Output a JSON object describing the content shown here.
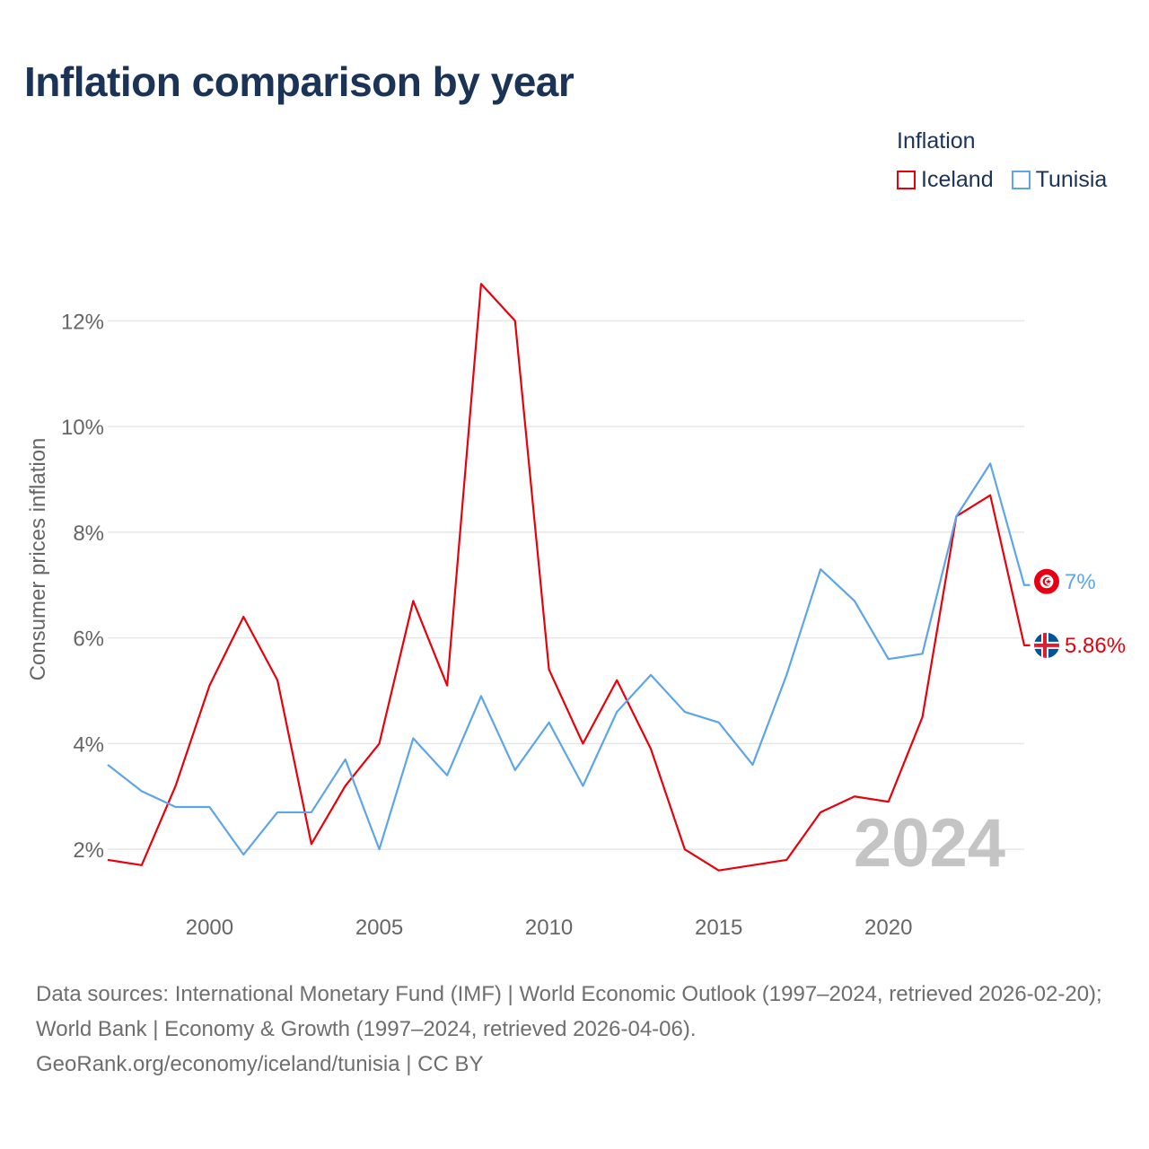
{
  "chart_data": {
    "type": "line",
    "title": "Inflation comparison by year",
    "ylabel": "Consumer prices inflation",
    "xlabel": "",
    "legend_title": "Inflation",
    "legend_position": "top-right",
    "year_watermark": "2024",
    "x": [
      1997,
      1998,
      1999,
      2000,
      2001,
      2002,
      2003,
      2004,
      2005,
      2006,
      2007,
      2008,
      2009,
      2010,
      2011,
      2012,
      2013,
      2014,
      2015,
      2016,
      2017,
      2018,
      2019,
      2020,
      2021,
      2022,
      2023,
      2024
    ],
    "xlim": [
      1997,
      2024
    ],
    "xticks": [
      2000,
      2005,
      2010,
      2015,
      2020
    ],
    "xtick_labels": [
      "2000",
      "2005",
      "2010",
      "2015",
      "2020"
    ],
    "ylim": [
      1,
      13.4
    ],
    "yticks": [
      2,
      4,
      6,
      8,
      10,
      12
    ],
    "ytick_labels": [
      "2%",
      "4%",
      "6%",
      "8%",
      "10%",
      "12%"
    ],
    "grid": true,
    "series": [
      {
        "name": "Iceland",
        "color": "#e8000b",
        "flag": "iceland-flag",
        "end_label": "5.86%",
        "values": [
          1.8,
          1.7,
          3.2,
          5.1,
          6.4,
          5.2,
          2.1,
          3.2,
          4.0,
          6.7,
          5.1,
          12.7,
          12.0,
          5.4,
          4.0,
          5.2,
          3.9,
          2.0,
          1.6,
          1.7,
          1.8,
          2.7,
          3.0,
          2.9,
          4.5,
          8.3,
          8.7,
          5.86
        ]
      },
      {
        "name": "Tunisia",
        "color": "#5da5e8",
        "flag": "tunisia-flag",
        "end_label": "7%",
        "values": [
          3.6,
          3.1,
          2.8,
          2.8,
          1.9,
          2.7,
          2.7,
          3.7,
          2.0,
          4.1,
          3.4,
          4.9,
          3.5,
          4.4,
          3.2,
          4.6,
          5.3,
          4.6,
          4.4,
          3.6,
          5.3,
          7.3,
          6.7,
          5.6,
          5.7,
          8.3,
          9.3,
          7.0
        ]
      }
    ]
  },
  "footer": {
    "line1": "Data sources: International Monetary Fund (IMF) | World Economic Outlook (1997–2024, retrieved 2026-02-20); World Bank | Economy & Growth (1997–2024, retrieved 2026-04-06).",
    "line2": "GeoRank.org/economy/iceland/tunisia | CC BY"
  }
}
